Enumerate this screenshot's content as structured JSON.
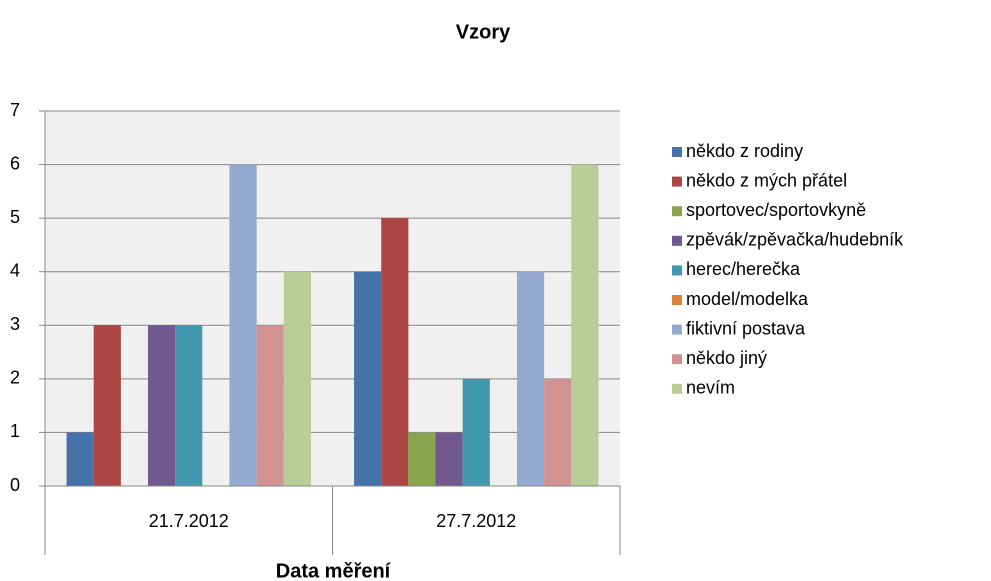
{
  "chart_data": {
    "type": "bar",
    "title": "Vzory",
    "x_label": "Data měření",
    "categories": [
      "21.7.2012",
      "27.7.2012"
    ],
    "series": [
      {
        "name": "někdo z rodiny",
        "color": "#4572a7",
        "values": [
          1,
          4
        ]
      },
      {
        "name": "někdo z mých přátel",
        "color": "#aa4643",
        "values": [
          3,
          5
        ]
      },
      {
        "name": "sportovec/sportovkyně",
        "color": "#89a54e",
        "values": [
          0,
          1
        ]
      },
      {
        "name": "zpěvák/zpěvačka/hudebník",
        "color": "#71588f",
        "values": [
          3,
          1
        ]
      },
      {
        "name": "herec/herečka",
        "color": "#4198af",
        "values": [
          3,
          2
        ]
      },
      {
        "name": "model/modelka",
        "color": "#db843d",
        "values": [
          0,
          0
        ]
      },
      {
        "name": "fiktivní postava",
        "color": "#93a9cf",
        "values": [
          6,
          4
        ]
      },
      {
        "name": "někdo jiný",
        "color": "#d19392",
        "values": [
          3,
          2
        ]
      },
      {
        "name": "nevím",
        "color": "#b9cd96",
        "values": [
          4,
          6
        ]
      }
    ],
    "ylim": [
      0,
      7
    ],
    "yticks": [
      0,
      1,
      2,
      3,
      4,
      5,
      6,
      7
    ],
    "grid": true,
    "legend": "right"
  }
}
